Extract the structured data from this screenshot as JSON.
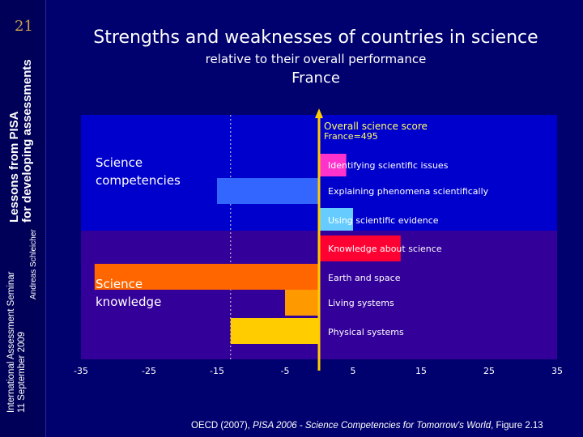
{
  "sidebar": {
    "page_number": "21",
    "series_line1": "Lessons from PISA",
    "series_line2": "for developing assessments",
    "event_line1": "International Assessment Seminar",
    "event_line2": "11 September 2009",
    "author": "Andreas Schleicher"
  },
  "header": {
    "title": "Strengths and weaknesses of countries in science",
    "subtitle": "relative to their overall performance",
    "country": "France"
  },
  "footer": {
    "source_prefix": "OECD (2007), ",
    "source_italic": "PISA 2006 - Science Competencies for Tomorrow's World",
    "source_suffix": ", Figure 2.13"
  },
  "colors": {
    "background": "#00006e",
    "panel_top": "#0000cc",
    "panel_bottom": "#330099",
    "axis_line": "#ffcc00",
    "text": "#ffffff",
    "score_label": "#ffff66"
  },
  "chart_data": {
    "type": "bar",
    "orientation": "horizontal",
    "title": "Strengths and weaknesses of countries in science",
    "subtitle": "relative to their overall performance",
    "country": "France",
    "baseline_label": "Overall science score",
    "baseline_value_label": "France=495",
    "xlim": [
      -35,
      35
    ],
    "xticks": [
      -35,
      -25,
      -15,
      -5,
      5,
      15,
      25,
      35
    ],
    "reference_line": -13,
    "groups": [
      {
        "name": "Science competencies",
        "label_lines": [
          "Science",
          "competencies"
        ]
      },
      {
        "name": "Science knowledge",
        "label_lines": [
          "Science",
          "knowledge"
        ]
      }
    ],
    "categories": [
      "Identifying scientific issues",
      "Explaining phenomena scientifically",
      "Using scientific evidence",
      "Knowledge about science",
      "Earth and space",
      "Living systems",
      "Physical systems"
    ],
    "values": [
      4,
      -15,
      5,
      12,
      -33,
      -5,
      -13
    ],
    "bar_colors": [
      "#ff33cc",
      "#3366ff",
      "#66ccff",
      "#ff0033",
      "#ff6600",
      "#ff9900",
      "#ffcc00"
    ],
    "category_group": [
      0,
      0,
      0,
      1,
      1,
      1,
      1
    ]
  }
}
